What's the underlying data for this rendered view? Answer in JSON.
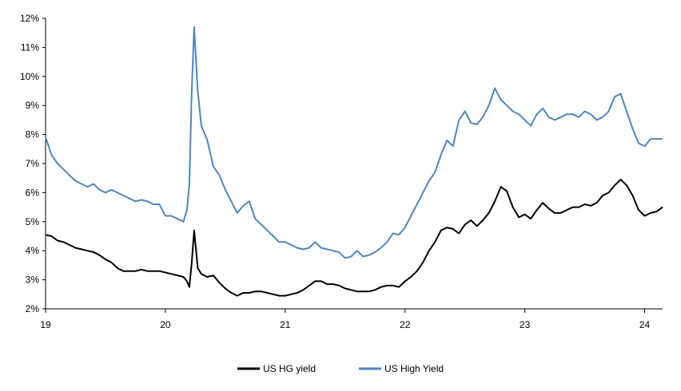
{
  "chart_data": {
    "type": "line",
    "title": "",
    "xlabel": "",
    "ylabel": "",
    "x_ticks": [
      "19",
      "20",
      "21",
      "22",
      "23",
      "24"
    ],
    "y_ticks": [
      "2%",
      "3%",
      "4%",
      "5%",
      "6%",
      "7%",
      "8%",
      "9%",
      "10%",
      "11%",
      "12%"
    ],
    "xlim": [
      2019.0,
      2024.15
    ],
    "ylim": [
      2,
      12
    ],
    "grid": false,
    "legend_position": "bottom-center",
    "x": [
      2019.0,
      2019.05,
      2019.1,
      2019.15,
      2019.2,
      2019.25,
      2019.3,
      2019.35,
      2019.4,
      2019.45,
      2019.5,
      2019.55,
      2019.6,
      2019.65,
      2019.7,
      2019.75,
      2019.8,
      2019.85,
      2019.9,
      2019.95,
      2020.0,
      2020.05,
      2020.1,
      2020.15,
      2020.18,
      2020.2,
      2020.22,
      2020.24,
      2020.27,
      2020.3,
      2020.35,
      2020.4,
      2020.45,
      2020.5,
      2020.55,
      2020.6,
      2020.65,
      2020.7,
      2020.75,
      2020.8,
      2020.85,
      2020.9,
      2020.95,
      2021.0,
      2021.05,
      2021.1,
      2021.15,
      2021.2,
      2021.25,
      2021.3,
      2021.35,
      2021.4,
      2021.45,
      2021.5,
      2021.55,
      2021.6,
      2021.65,
      2021.7,
      2021.75,
      2021.8,
      2021.85,
      2021.9,
      2021.95,
      2022.0,
      2022.05,
      2022.1,
      2022.15,
      2022.2,
      2022.25,
      2022.3,
      2022.35,
      2022.4,
      2022.45,
      2022.5,
      2022.55,
      2022.6,
      2022.65,
      2022.7,
      2022.75,
      2022.8,
      2022.85,
      2022.9,
      2022.95,
      2023.0,
      2023.05,
      2023.1,
      2023.15,
      2023.2,
      2023.25,
      2023.3,
      2023.35,
      2023.4,
      2023.45,
      2023.5,
      2023.55,
      2023.6,
      2023.65,
      2023.7,
      2023.75,
      2023.8,
      2023.85,
      2023.9,
      2023.95,
      2024.0,
      2024.05,
      2024.1,
      2024.15
    ],
    "series": [
      {
        "name": "US HG yield",
        "color": "#000000",
        "values": [
          4.55,
          4.5,
          4.35,
          4.3,
          4.2,
          4.1,
          4.05,
          4.0,
          3.95,
          3.85,
          3.7,
          3.6,
          3.4,
          3.3,
          3.3,
          3.3,
          3.35,
          3.3,
          3.3,
          3.3,
          3.25,
          3.2,
          3.15,
          3.1,
          2.95,
          2.75,
          3.6,
          4.7,
          3.4,
          3.2,
          3.1,
          3.15,
          2.9,
          2.7,
          2.55,
          2.45,
          2.55,
          2.55,
          2.6,
          2.6,
          2.55,
          2.5,
          2.45,
          2.45,
          2.5,
          2.55,
          2.65,
          2.8,
          2.95,
          2.95,
          2.85,
          2.85,
          2.8,
          2.7,
          2.65,
          2.6,
          2.6,
          2.6,
          2.65,
          2.75,
          2.8,
          2.8,
          2.75,
          2.95,
          3.1,
          3.3,
          3.6,
          4.0,
          4.3,
          4.7,
          4.8,
          4.75,
          4.6,
          4.9,
          5.05,
          4.85,
          5.05,
          5.3,
          5.7,
          6.2,
          6.05,
          5.5,
          5.15,
          5.25,
          5.1,
          5.4,
          5.65,
          5.45,
          5.3,
          5.3,
          5.4,
          5.5,
          5.5,
          5.6,
          5.55,
          5.65,
          5.9,
          6.0,
          6.25,
          6.45,
          6.25,
          5.9,
          5.4,
          5.2,
          5.3,
          5.35,
          5.5
        ]
      },
      {
        "name": "US High Yield",
        "color": "#4f86bd",
        "values": [
          7.9,
          7.3,
          7.0,
          6.8,
          6.6,
          6.4,
          6.3,
          6.2,
          6.3,
          6.1,
          6.0,
          6.1,
          6.0,
          5.9,
          5.8,
          5.7,
          5.75,
          5.7,
          5.6,
          5.6,
          5.2,
          5.2,
          5.1,
          5.0,
          5.4,
          6.3,
          9.5,
          11.7,
          9.5,
          8.3,
          7.8,
          6.9,
          6.6,
          6.1,
          5.7,
          5.3,
          5.55,
          5.7,
          5.1,
          4.9,
          4.7,
          4.5,
          4.3,
          4.3,
          4.2,
          4.1,
          4.05,
          4.1,
          4.3,
          4.1,
          4.05,
          4.0,
          3.95,
          3.75,
          3.8,
          4.0,
          3.8,
          3.85,
          3.95,
          4.1,
          4.3,
          4.6,
          4.55,
          4.8,
          5.2,
          5.6,
          6.0,
          6.4,
          6.7,
          7.3,
          7.8,
          7.6,
          8.5,
          8.8,
          8.4,
          8.35,
          8.6,
          9.0,
          9.6,
          9.2,
          9.0,
          8.8,
          8.7,
          8.5,
          8.3,
          8.7,
          8.9,
          8.6,
          8.5,
          8.6,
          8.7,
          8.7,
          8.6,
          8.8,
          8.7,
          8.5,
          8.6,
          8.8,
          9.3,
          9.4,
          8.8,
          8.2,
          7.7,
          7.6,
          7.85,
          7.85,
          7.85
        ]
      }
    ]
  }
}
